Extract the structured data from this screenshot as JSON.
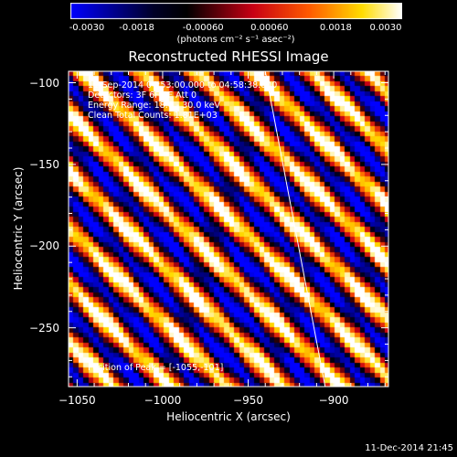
{
  "colorbar": {
    "ticks": [
      "-0.0030",
      "-0.0018",
      "-0.00060",
      "0.00060",
      "0.0018",
      "0.0030"
    ],
    "tick_values": [
      -0.003,
      -0.0018,
      -0.0006,
      0.0006,
      0.0018,
      0.003
    ],
    "label": "(photons cm⁻² s⁻¹ asec⁻²)",
    "range": [
      -0.003,
      0.003
    ]
  },
  "info": {
    "line1": "11-Sep-2014 04:53:00.000 to 04:58:38.000",
    "line2": "Detectors: 3F 6F 9F  Att 0",
    "line3": "Energy Range: 18.0 - 30.0 keV",
    "line4": "Clean    Total Counts: 1.81E+03",
    "peak": "Position of Peak = [-1055,-101]"
  },
  "timestamp": "11-Dec-2014 21:45",
  "chart_data": {
    "type": "heatmap",
    "title": "Reconstructed RHESSI Image",
    "xlabel": "Heliocentric X (arcsec)",
    "ylabel": "Heliocentric Y (arcsec)",
    "xlim": [
      -1055,
      -868
    ],
    "ylim": [
      -286,
      -93
    ],
    "x_ticks": [
      -1050,
      -1000,
      -950,
      -900
    ],
    "y_ticks": [
      -100,
      -150,
      -200,
      -250
    ],
    "x_tick_labels": [
      "−1050",
      "−1000",
      "−950",
      "−900"
    ],
    "y_tick_labels": [
      "−100",
      "−150",
      "−200",
      "−250"
    ],
    "colormap": "blue-black-red-yellow-white",
    "pattern": "diagonal stripes",
    "peak": [
      -1055,
      -101
    ],
    "limb_line": [
      [
        -940,
        -93
      ],
      [
        -905,
        -286
      ]
    ]
  }
}
